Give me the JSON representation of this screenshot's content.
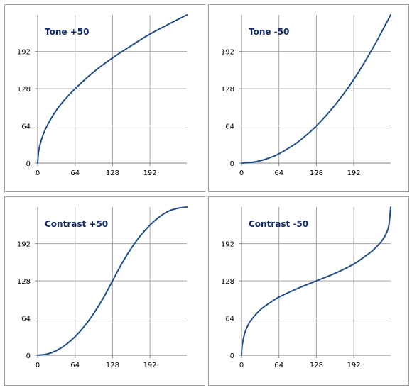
{
  "colors": {
    "curve": "#1f4e8a",
    "grid": "#a6a6a6",
    "axis": "#7f7f7f",
    "title": "#102a6a"
  },
  "chart_data": [
    {
      "type": "line",
      "title": "Tone +50",
      "xlim": [
        0,
        255
      ],
      "ylim": [
        0,
        255
      ],
      "xticks": [
        0,
        64,
        128,
        192
      ],
      "yticks": [
        0,
        64,
        128,
        192
      ],
      "grid": true,
      "series": [
        {
          "x": [
            0,
            2,
            8,
            16,
            32,
            48,
            64,
            96,
            128,
            160,
            192,
            224,
            255
          ],
          "values": [
            0,
            22,
            45,
            64,
            91,
            111,
            128,
            157,
            181,
            202,
            222,
            239,
            255
          ]
        }
      ]
    },
    {
      "type": "line",
      "title": "Tone -50",
      "xlim": [
        0,
        255
      ],
      "ylim": [
        0,
        255
      ],
      "xticks": [
        0,
        64,
        128,
        192
      ],
      "yticks": [
        0,
        64,
        128,
        192
      ],
      "grid": true,
      "series": [
        {
          "x": [
            0,
            16,
            32,
            48,
            64,
            96,
            128,
            160,
            192,
            224,
            255
          ],
          "values": [
            0,
            1,
            4,
            9,
            16,
            36,
            64,
            100,
            144,
            197,
            255
          ]
        }
      ]
    },
    {
      "type": "line",
      "title": "Contrast +50",
      "xlim": [
        0,
        255
      ],
      "ylim": [
        0,
        255
      ],
      "xticks": [
        0,
        64,
        128,
        192
      ],
      "yticks": [
        0,
        64,
        128,
        192
      ],
      "grid": true,
      "series": [
        {
          "x": [
            0,
            16,
            32,
            48,
            64,
            80,
            96,
            112,
            128,
            144,
            160,
            176,
            192,
            208,
            224,
            240,
            255
          ],
          "values": [
            0,
            2,
            8,
            18,
            32,
            50,
            72,
            98,
            128,
            158,
            184,
            206,
            224,
            238,
            248,
            253,
            255
          ]
        }
      ]
    },
    {
      "type": "line",
      "title": "Contrast -50",
      "xlim": [
        0,
        255
      ],
      "ylim": [
        0,
        255
      ],
      "xticks": [
        0,
        64,
        128,
        192
      ],
      "yticks": [
        0,
        64,
        128,
        192
      ],
      "grid": true,
      "series": [
        {
          "x": [
            0,
            1,
            4,
            8,
            16,
            32,
            48,
            64,
            96,
            128,
            160,
            192,
            208,
            224,
            240,
            248,
            252,
            255
          ],
          "values": [
            0,
            16,
            32,
            45,
            60,
            78,
            90,
            100,
            115,
            128,
            141,
            157,
            168,
            180,
            197,
            211,
            224,
            255
          ]
        }
      ]
    }
  ]
}
